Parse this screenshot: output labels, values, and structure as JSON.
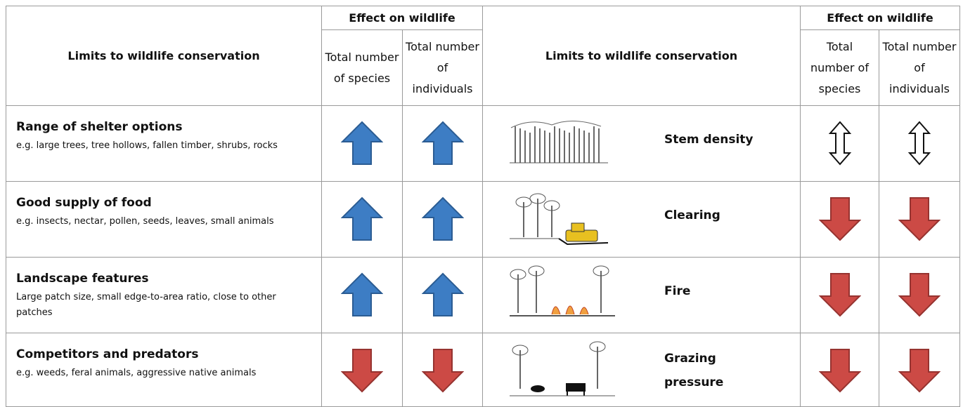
{
  "left_header": {
    "title": "Limits to wildlife conservation",
    "effect": "Effect on wildlife",
    "species": "Total number of species",
    "individuals": "Total number of individuals"
  },
  "right_header": {
    "title": "Limits to wildlife conservation",
    "effect": "Effect on wildlife",
    "species": "Total number of species",
    "individuals": "Total number of individuals"
  },
  "left_rows": [
    {
      "title": "Range of shelter options",
      "detail": "e.g. large trees, tree hollows, fallen timber, shrubs, rocks"
    },
    {
      "title": "Good supply of food",
      "detail": "e.g. insects, nectar, pollen, seeds, leaves, small animals"
    },
    {
      "title": "Landscape features",
      "detail": "Large patch size, small edge-to-area ratio, close to other patches"
    },
    {
      "title": "Competitors and predators",
      "detail": "e.g. weeds, feral animals, aggressive native animals"
    }
  ],
  "right_rows": [
    {
      "label": "Stem density"
    },
    {
      "label": "Clearing"
    },
    {
      "label": "Fire"
    },
    {
      "label": "Grazing pressure"
    }
  ]
}
